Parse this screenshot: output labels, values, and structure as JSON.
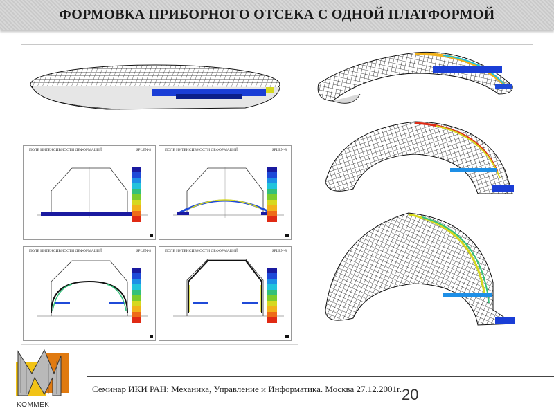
{
  "title": "ФОРМОВКА ПРИБОРНОГО ОТСЕКА С ОДНОЙ ПЛАТФОРМОЙ",
  "footer": {
    "seminar": "Семинар ИКИ РАН: Механика, Управление и Информатика. Москва 27.12.2001г.",
    "slide_number": "20"
  },
  "logo": {
    "name": "KOMMEK"
  },
  "panels": [
    {
      "title": "ПОЛЕ ИНТЕНСИВНОСТИ ДЕФОРМАЦИЙ",
      "code": "SPLEN-8"
    },
    {
      "title": "ПОЛЕ ИНТЕНСИВНОСТИ ДЕФОРМАЦИЙ",
      "code": "SPLEN-8"
    },
    {
      "title": "ПОЛЕ ИНТЕНСИВНОСТИ ДЕФОРМАЦИЙ",
      "code": "SPLEN-8"
    },
    {
      "title": "ПОЛЕ ИНТЕНСИВНОСТИ ДЕФОРМАЦИЙ",
      "code": "SPLEN-8"
    }
  ],
  "colors": {
    "scale": [
      "#1a1aa0",
      "#1f4ad8",
      "#1e8fe6",
      "#22c3dc",
      "#33c07a",
      "#7ccc2d",
      "#d6d81f",
      "#f2b21a",
      "#ee6b18",
      "#e02a14"
    ],
    "mesh": "#111111",
    "platform": "#1a3ed6"
  }
}
